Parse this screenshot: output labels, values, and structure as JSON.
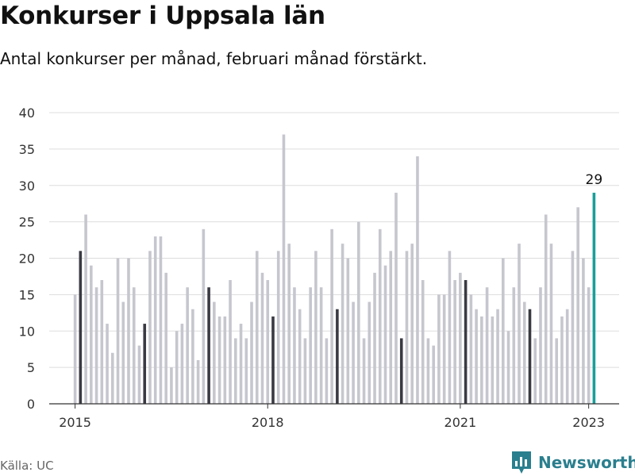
{
  "header": {
    "title": "Konkurser i Uppsala län",
    "subtitle": "Antal konkurser per månad, februari månad förstärkt."
  },
  "footer": {
    "source": "Källa: UC",
    "brand": "Newsworthy"
  },
  "colors": {
    "regular_bar": "#c6c6cf",
    "february_bar": "#3a3a44",
    "latest_bar": "#1a9e9a",
    "grid": "#dddddd",
    "axis": "#333333"
  },
  "chart_data": {
    "type": "bar",
    "title": "Konkurser i Uppsala län",
    "subtitle": "Antal konkurser per månad, februari månad förstärkt.",
    "xlabel": "",
    "ylabel": "",
    "ylim": [
      0,
      40
    ],
    "yticks": [
      0,
      5,
      10,
      15,
      20,
      25,
      30,
      35,
      40
    ],
    "grid": true,
    "x_tick_labels": [
      "2015",
      "2018",
      "2021",
      "2023"
    ],
    "start_month": "2015-01",
    "values": [
      15,
      21,
      26,
      19,
      16,
      17,
      11,
      7,
      20,
      14,
      20,
      16,
      8,
      11,
      21,
      23,
      23,
      18,
      5,
      10,
      11,
      16,
      13,
      6,
      24,
      16,
      14,
      12,
      12,
      17,
      9,
      11,
      9,
      14,
      21,
      18,
      17,
      12,
      21,
      37,
      22,
      16,
      13,
      9,
      16,
      21,
      16,
      9,
      24,
      13,
      22,
      20,
      14,
      25,
      9,
      14,
      18,
      24,
      19,
      21,
      29,
      9,
      21,
      22,
      34,
      17,
      9,
      8,
      15,
      15,
      21,
      17,
      18,
      17,
      15,
      13,
      12,
      16,
      12,
      13,
      20,
      10,
      16,
      22,
      14,
      13,
      9,
      16,
      26,
      22,
      9,
      12,
      13,
      21,
      27,
      20,
      16,
      29
    ],
    "highlighted_month": "februari",
    "last_value_label": "29"
  }
}
